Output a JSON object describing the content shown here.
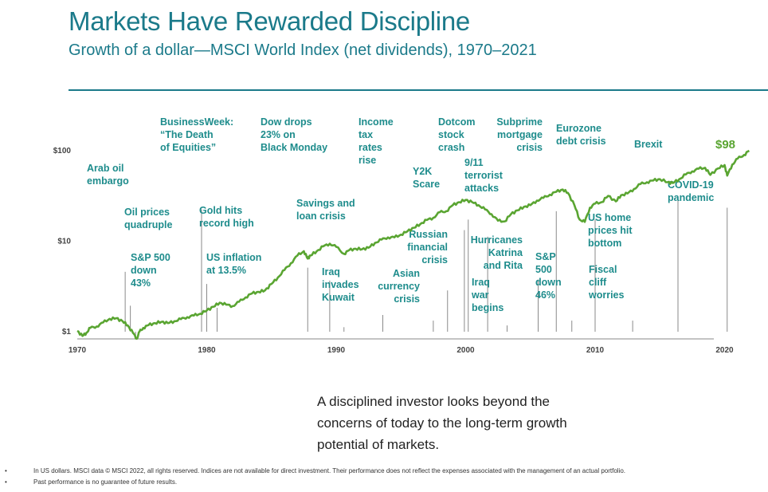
{
  "title": "Markets Have Rewarded Discipline",
  "subtitle": "Growth of a dollar—MSCI World Index (net dividends), 1970–2021",
  "callout": [
    "A disciplined investor looks beyond the",
    "concerns of today to the long-term growth",
    "potential of markets."
  ],
  "footnotes": [
    "In US dollars. MSCI data © MSCI 2022, all rights reserved. Indices are not available for direct investment. Their performance does not reflect the expenses associated with the management of an actual portfolio.",
    "Past performance is no guarantee of future results."
  ],
  "colors": {
    "title": "#1b7a8a",
    "line": "#5aa532",
    "annotation": "#1e8c8c",
    "end_label": "#5aa532"
  },
  "chart_data": {
    "type": "line",
    "yscale": "log",
    "ylim": [
      1,
      100
    ],
    "xlim": [
      1970,
      2022
    ],
    "yticks": [
      1,
      10,
      100
    ],
    "ytick_labels": [
      "$1",
      "$10",
      "$100"
    ],
    "xticks": [
      1970,
      1980,
      1990,
      2000,
      2010,
      2020
    ],
    "end_label": "$98",
    "series": [
      {
        "x": [
          1970,
          1970.4,
          1970.7,
          1971,
          1971.5,
          1972,
          1972.5,
          1973,
          1973.5,
          1973.9,
          1974.3,
          1974.6,
          1974.8,
          1975.1,
          1975.5,
          1976,
          1976.5,
          1977,
          1977.5,
          1978,
          1978.5,
          1979,
          1979.5,
          1980,
          1980.5,
          1981,
          1981.5,
          1982,
          1982.5,
          1983,
          1983.5,
          1984,
          1984.5,
          1985,
          1985.5,
          1986,
          1986.5,
          1987,
          1987.5,
          1987.8,
          1988,
          1988.5,
          1989,
          1989.5,
          1990,
          1990.6,
          1991,
          1991.5,
          1992,
          1992.5,
          1993,
          1993.5,
          1994,
          1994.5,
          1995,
          1995.5,
          1996,
          1996.5,
          1997,
          1997.5,
          1998,
          1998.5,
          1999,
          1999.5,
          2000,
          2000.5,
          2001,
          2001.5,
          2002,
          2002.5,
          2003,
          2003.5,
          2004,
          2004.5,
          2005,
          2005.5,
          2006,
          2006.5,
          2007,
          2007.5,
          2007.9,
          2008.4,
          2008.8,
          2009.2,
          2009.6,
          2010,
          2010.5,
          2011,
          2011.6,
          2012,
          2012.5,
          2013,
          2013.5,
          2014,
          2014.5,
          2015,
          2015.6,
          2016,
          2016.5,
          2017,
          2017.5,
          2018,
          2018.5,
          2018.9,
          2019.5,
          2020,
          2020.2,
          2020.6,
          2021,
          2021.5,
          2021.9
        ],
        "y": [
          1,
          0.88,
          0.95,
          1.08,
          1.12,
          1.24,
          1.36,
          1.38,
          1.28,
          1.15,
          0.95,
          0.82,
          0.98,
          1.08,
          1.16,
          1.22,
          1.26,
          1.22,
          1.28,
          1.35,
          1.42,
          1.48,
          1.55,
          1.68,
          1.85,
          2.05,
          1.95,
          1.88,
          2.1,
          2.35,
          2.6,
          2.7,
          2.8,
          3.3,
          3.9,
          4.7,
          5.6,
          6.8,
          7.6,
          6.3,
          6.8,
          7.6,
          8.6,
          9.2,
          8.5,
          7.1,
          7.8,
          8.1,
          8.0,
          8.3,
          9.4,
          10.2,
          10.8,
          10.8,
          11.6,
          12.6,
          13.8,
          15.2,
          16.8,
          17.8,
          20.5,
          21.0,
          24.5,
          26.5,
          28.0,
          26.5,
          24.5,
          22.0,
          19.5,
          16.5,
          16.2,
          19.5,
          21.5,
          23.5,
          24.5,
          27.5,
          29.5,
          32.0,
          34.5,
          36.5,
          33.5,
          24.5,
          17.0,
          16.0,
          23.0,
          25.5,
          26.5,
          31.0,
          27.0,
          31.5,
          33.0,
          37.0,
          42.0,
          44.0,
          46.0,
          47.5,
          44.0,
          43.0,
          47.5,
          53.5,
          58.0,
          62.0,
          63.5,
          53.0,
          62.5,
          68.0,
          52.0,
          69.0,
          80.0,
          88.0,
          98.0
        ]
      }
    ],
    "annotations": [
      {
        "text": [
          "Arab oil",
          "embargo"
        ],
        "x": 1973.7,
        "y_top": 4.5
      },
      {
        "text": [
          "Oil prices",
          "quadruple"
        ],
        "x": 1974.1,
        "y_top": 1.9
      },
      {
        "text": [
          "S&P 500",
          "down",
          "43%"
        ],
        "x": 1974.5,
        "y_top": 0.87
      },
      {
        "text": [
          "BusinessWeek:",
          "“The Death",
          "of Equities”"
        ],
        "x": 1979.6,
        "y_top": 22
      },
      {
        "text": [
          "Gold hits",
          "record high"
        ],
        "x": 1980,
        "y_top": 3.3
      },
      {
        "text": [
          "US inflation",
          "at 13.5%"
        ],
        "x": 1980.8,
        "y_top": 1.8
      },
      {
        "text": [
          "Dow drops",
          "23% on",
          "Black Monday"
        ],
        "x": 1987.8,
        "y_top": 5
      },
      {
        "text": [
          "Savings and",
          "loan crisis"
        ],
        "x": 1989.5,
        "y_top": 3.6
      },
      {
        "text": [
          "Iraq",
          "invades",
          "Kuwait"
        ],
        "x": 1990.6,
        "y_top": 1.1
      },
      {
        "text": [
          "Income",
          "tax",
          "rates",
          "rise"
        ],
        "x": 1993.6,
        "y_top": 1.5
      },
      {
        "text": [
          "Asian",
          "currency",
          "crisis"
        ],
        "x": 1997.5,
        "y_top": 1.3
      },
      {
        "text": [
          "Russian",
          "financial",
          "crisis"
        ],
        "x": 1998.6,
        "y_top": 2.8
      },
      {
        "text": [
          "Y2K",
          "Scare"
        ],
        "x": 1999.9,
        "y_top": 13
      },
      {
        "text": [
          "Dotcom",
          "stock",
          "crash"
        ],
        "x": 2000.2,
        "y_top": 17
      },
      {
        "text": [
          "9/11",
          "terrorist",
          "attacks"
        ],
        "x": 2001.7,
        "y_top": 11
      },
      {
        "text": [
          "Iraq",
          "war",
          "begins"
        ],
        "x": 2003.2,
        "y_top": 1.15
      },
      {
        "text": [
          "Hurricanes",
          "Katrina",
          "and Rita"
        ],
        "x": 2005.6,
        "y_top": 3.7
      },
      {
        "text": [
          "Subprime",
          "mortgage",
          "crisis"
        ],
        "x": 2007,
        "y_top": 21
      },
      {
        "text": [
          "S&P",
          "500",
          "down",
          "46%"
        ],
        "x": 2008.2,
        "y_top": 1.3
      },
      {
        "text": [
          "Eurozone",
          "debt crisis"
        ],
        "x": 2010,
        "y_top": 17
      },
      {
        "text": [
          "US home",
          "prices hit",
          "bottom"
        ],
        "x": 2012,
        "y_top": null
      },
      {
        "text": [
          "Fiscal",
          "cliff",
          "worries"
        ],
        "x": 2012.9,
        "y_top": 1.3
      },
      {
        "text": [
          "Brexit"
        ],
        "x": 2016.4,
        "y_top": 31
      },
      {
        "text": [
          "COVID-19",
          "pandemic"
        ],
        "x": 2020.2,
        "y_top": 23
      }
    ]
  }
}
